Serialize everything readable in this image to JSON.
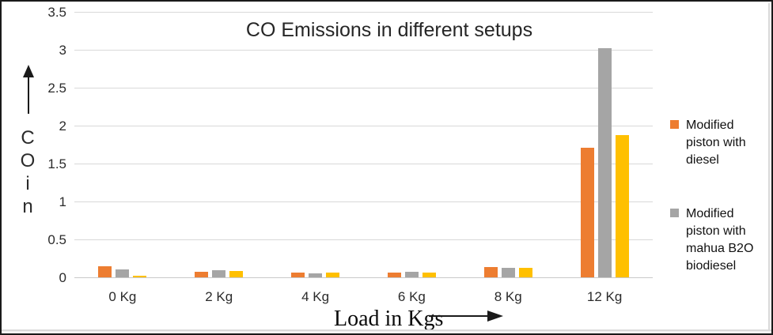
{
  "title": "CO Emissions in different setups",
  "y_axis": {
    "label_letters": [
      "C",
      "O",
      "i",
      "n"
    ],
    "ticks": [
      "3.5",
      "3",
      "2.5",
      "2",
      "1.5",
      "1",
      "0.5",
      "0"
    ]
  },
  "x_axis": {
    "label": "Load in Kgs",
    "categories": [
      "0 Kg",
      "2 Kg",
      "4 Kg",
      "6 Kg",
      "8 Kg",
      "12 Kg"
    ]
  },
  "legend": [
    {
      "label": "Modified piston with diesel",
      "color": "#ED7D31"
    },
    {
      "label": "Modified piston with mahua B2O biodiesel",
      "color": "#A5A5A5"
    }
  ],
  "colors": {
    "orange": "#ED7D31",
    "gray": "#A5A5A5",
    "yellow": "#FFC000",
    "gridline": "#D9D9D9",
    "text": "#262626"
  },
  "chart_data": {
    "type": "bar",
    "title": "CO Emissions in different setups",
    "categories": [
      "0 Kg",
      "2 Kg",
      "4 Kg",
      "6 Kg",
      "8 Kg",
      "12 Kg"
    ],
    "series": [
      {
        "name": "Modified piston with diesel",
        "color": "#ED7D31",
        "values": [
          0.15,
          0.07,
          0.06,
          0.06,
          0.14,
          1.71
        ]
      },
      {
        "name": "Modified piston with mahua B2O biodiesel",
        "color": "#A5A5A5",
        "values": [
          0.1,
          0.09,
          0.05,
          0.07,
          0.13,
          3.02
        ]
      },
      {
        "name": "",
        "color": "#FFC000",
        "values": [
          0.02,
          0.08,
          0.06,
          0.06,
          0.12,
          1.87
        ],
        "legend_visible": false
      }
    ],
    "xlabel": "Load in Kgs",
    "ylabel": "CO in",
    "ylim": [
      0,
      3.5
    ],
    "ytick_step": 0.5,
    "grid": true,
    "legend_position": "right"
  }
}
